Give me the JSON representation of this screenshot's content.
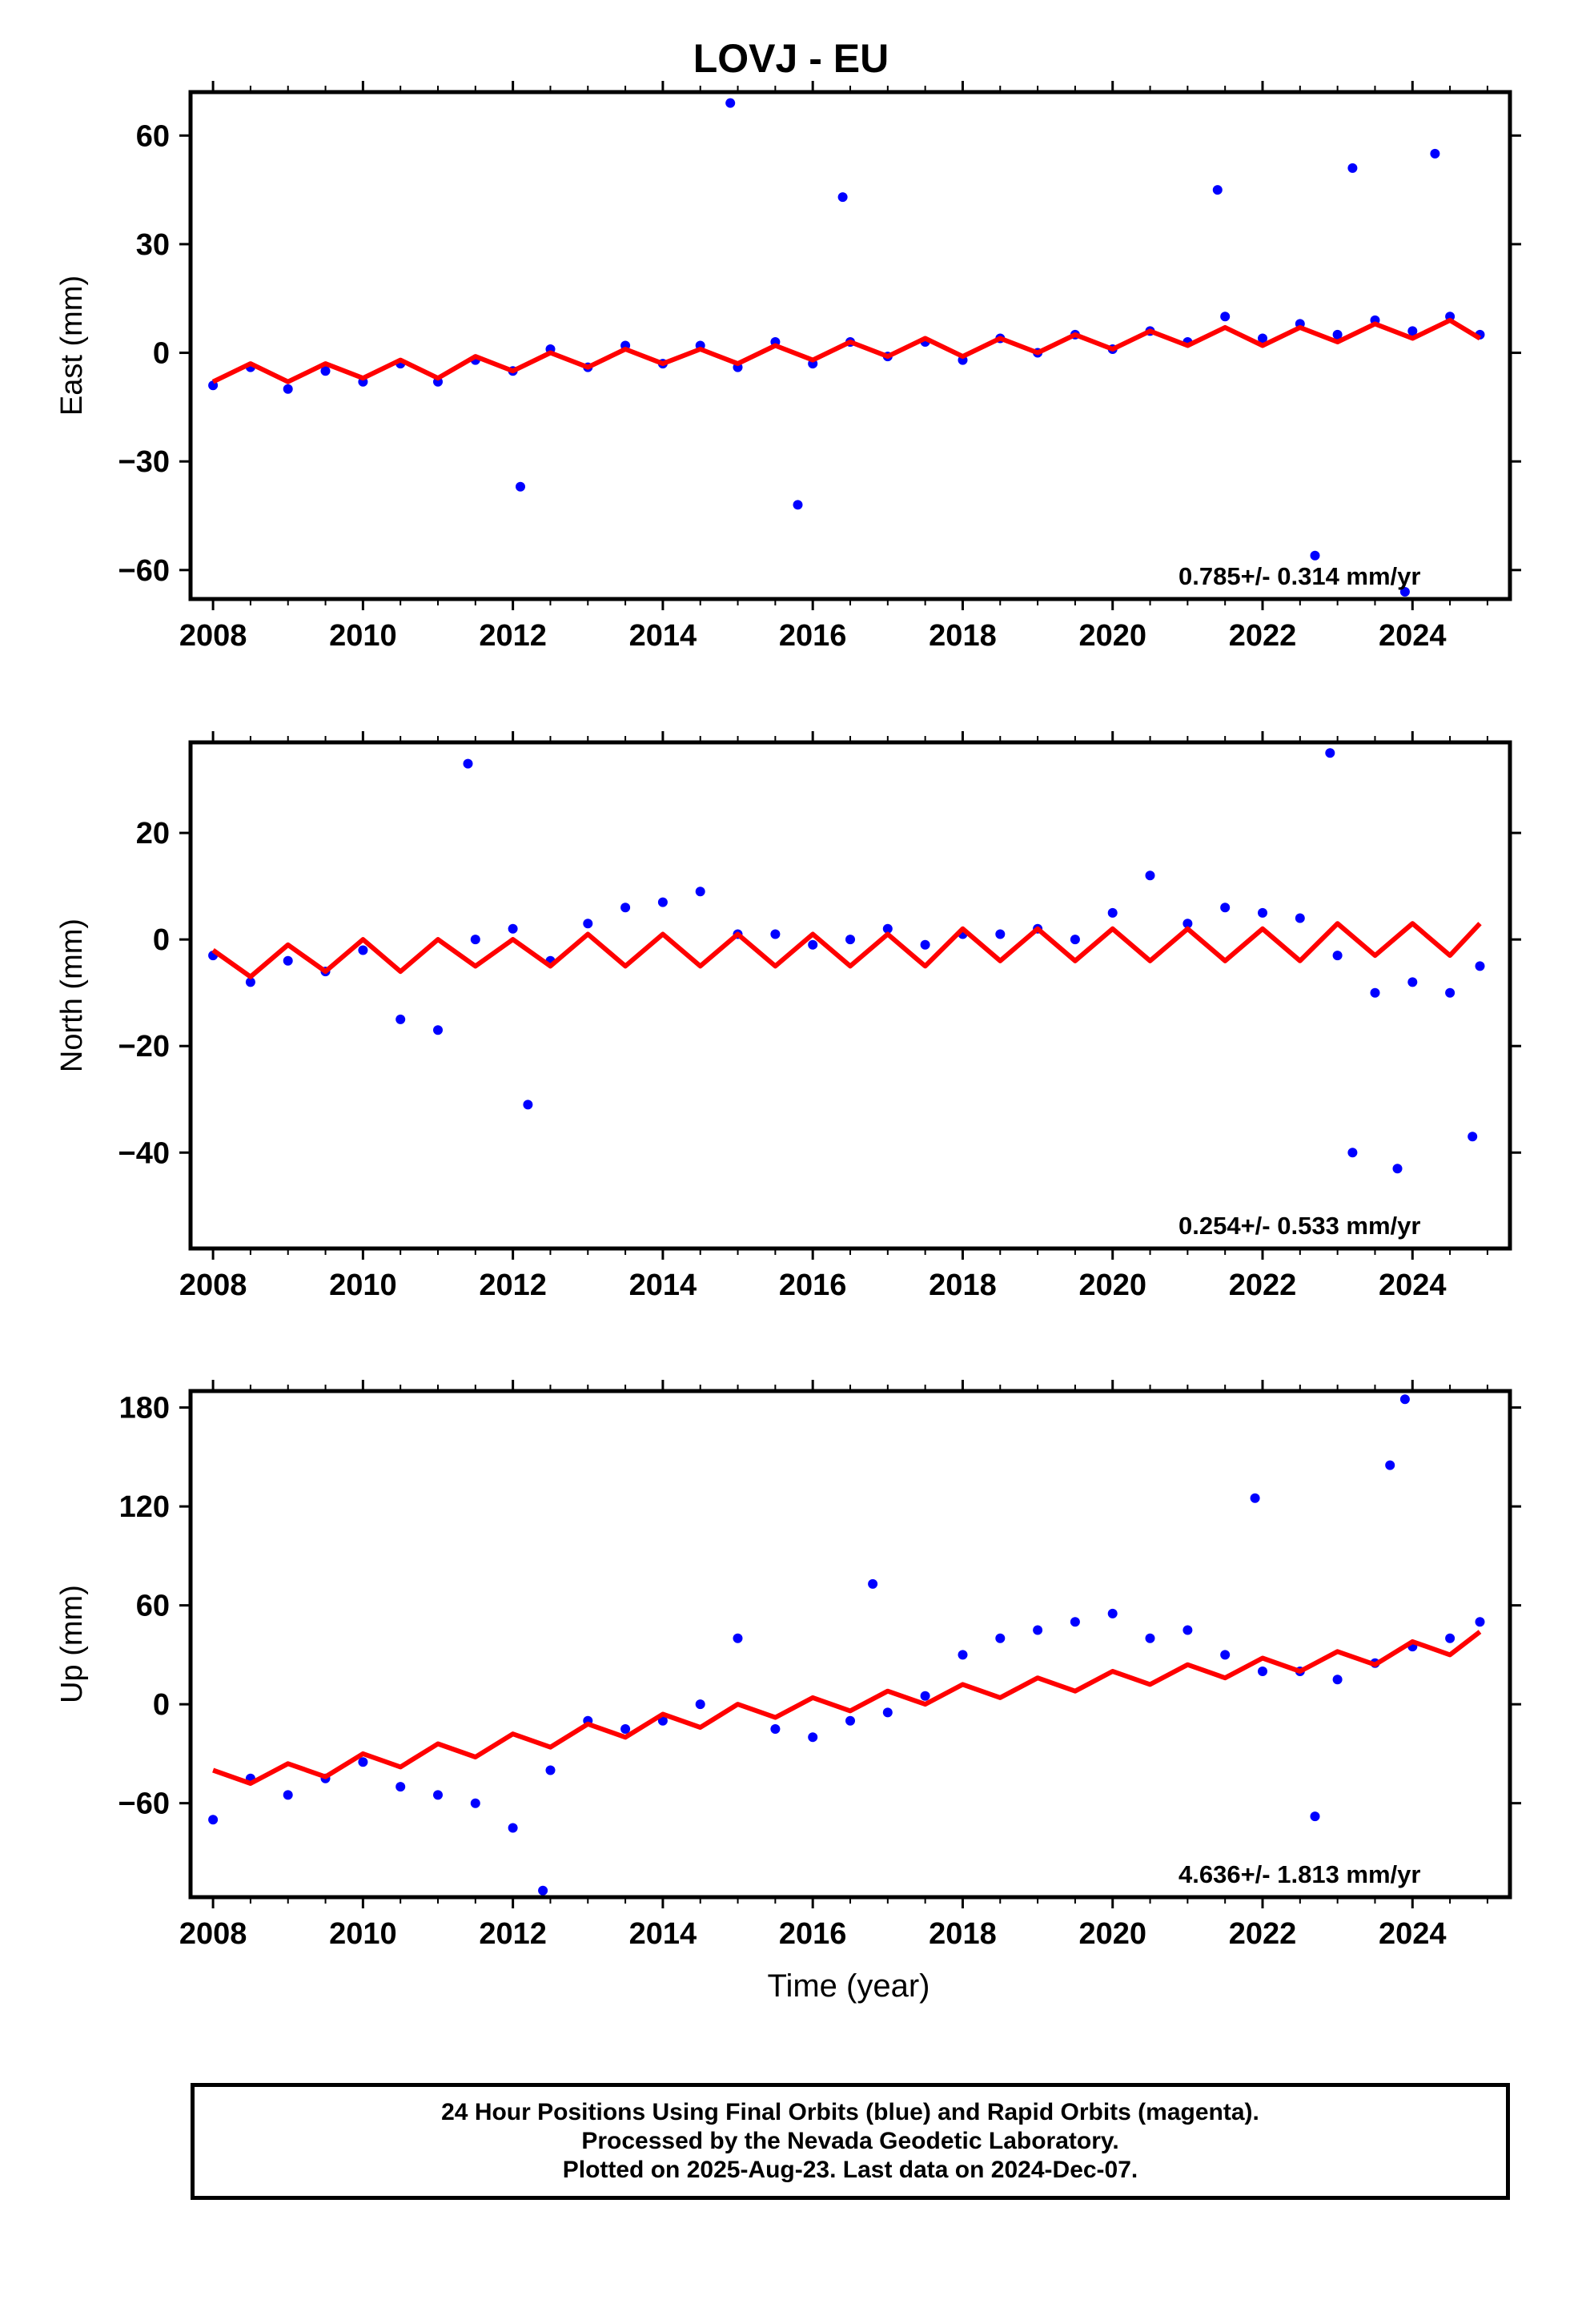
{
  "title": "LOVJ - EU",
  "xlabel": "Time (year)",
  "footer": {
    "line1": "24 Hour Positions Using Final Orbits (blue) and Rapid Orbits (magenta).",
    "line2": "Processed by the Nevada Geodetic Laboratory.",
    "line3": "Plotted on 2025-Aug-23. Last data on 2024-Dec-07."
  },
  "colors": {
    "points": "#0000ff",
    "model": "#ff0000",
    "frame": "#000000"
  },
  "chart_data": [
    {
      "type": "scatter",
      "component": "East",
      "ylabel": "East (mm)",
      "xlim": [
        2007.7,
        2025.3
      ],
      "ylim": [
        -68,
        72
      ],
      "xticks": [
        2008,
        2010,
        2012,
        2014,
        2016,
        2018,
        2020,
        2022,
        2024
      ],
      "yticks": [
        -60,
        -30,
        0,
        30,
        60
      ],
      "velocity_label": "0.785+/- 0.314 mm/yr",
      "model_curve": {
        "x": [
          2008.0,
          2008.5,
          2009.0,
          2009.5,
          2010.0,
          2010.5,
          2011.0,
          2011.5,
          2012.0,
          2012.5,
          2013.0,
          2013.5,
          2014.0,
          2014.5,
          2015.0,
          2015.5,
          2016.0,
          2016.5,
          2017.0,
          2017.5,
          2018.0,
          2018.5,
          2019.0,
          2019.5,
          2020.0,
          2020.5,
          2021.0,
          2021.5,
          2022.0,
          2022.5,
          2023.0,
          2023.5,
          2024.0,
          2024.5,
          2024.9
        ],
        "y": [
          -8,
          -3,
          -8,
          -3,
          -7,
          -2,
          -7,
          -1,
          -5,
          0,
          -4,
          1,
          -3,
          1,
          -3,
          2,
          -2,
          3,
          -1,
          4,
          -1,
          4,
          0,
          5,
          1,
          6,
          2,
          7,
          2,
          7,
          3,
          8,
          4,
          9,
          4
        ]
      },
      "series": [
        {
          "name": "daily positions",
          "x": [
            2008.0,
            2008.5,
            2009.0,
            2009.5,
            2010.0,
            2010.5,
            2011.0,
            2011.5,
            2012.0,
            2012.5,
            2013.0,
            2013.5,
            2014.0,
            2014.5,
            2015.0,
            2015.5,
            2016.0,
            2016.5,
            2017.0,
            2017.5,
            2018.0,
            2018.5,
            2019.0,
            2019.5,
            2020.0,
            2020.5,
            2021.0,
            2021.5,
            2022.0,
            2022.5,
            2023.0,
            2023.5,
            2024.0,
            2024.5,
            2024.9,
            2014.9,
            2016.4,
            2021.4,
            2023.2,
            2024.3,
            2012.1,
            2015.8,
            2022.7,
            2023.9
          ],
          "y": [
            -9,
            -4,
            -10,
            -5,
            -8,
            -3,
            -8,
            -2,
            -5,
            1,
            -4,
            2,
            -3,
            2,
            -4,
            3,
            -3,
            3,
            -1,
            3,
            -2,
            4,
            0,
            5,
            1,
            6,
            3,
            10,
            4,
            8,
            5,
            9,
            6,
            10,
            5,
            69,
            43,
            45,
            51,
            55,
            -37,
            -42,
            -56,
            -66
          ]
        }
      ]
    },
    {
      "type": "scatter",
      "component": "North",
      "ylabel": "North (mm)",
      "xlim": [
        2007.7,
        2025.3
      ],
      "ylim": [
        -58,
        37
      ],
      "xticks": [
        2008,
        2010,
        2012,
        2014,
        2016,
        2018,
        2020,
        2022,
        2024
      ],
      "yticks": [
        -40,
        -20,
        0,
        20
      ],
      "velocity_label": "0.254+/- 0.533 mm/yr",
      "model_curve": {
        "x": [
          2008.0,
          2008.5,
          2009.0,
          2009.5,
          2010.0,
          2010.5,
          2011.0,
          2011.5,
          2012.0,
          2012.5,
          2013.0,
          2013.5,
          2014.0,
          2014.5,
          2015.0,
          2015.5,
          2016.0,
          2016.5,
          2017.0,
          2017.5,
          2018.0,
          2018.5,
          2019.0,
          2019.5,
          2020.0,
          2020.5,
          2021.0,
          2021.5,
          2022.0,
          2022.5,
          2023.0,
          2023.5,
          2024.0,
          2024.5,
          2024.9
        ],
        "y": [
          -2,
          -7,
          -1,
          -6,
          0,
          -6,
          0,
          -5,
          0,
          -5,
          1,
          -5,
          1,
          -5,
          1,
          -5,
          1,
          -5,
          1,
          -5,
          2,
          -4,
          2,
          -4,
          2,
          -4,
          2,
          -4,
          2,
          -4,
          3,
          -3,
          3,
          -3,
          3
        ]
      },
      "series": [
        {
          "name": "daily positions",
          "x": [
            2008.0,
            2008.5,
            2009.0,
            2009.5,
            2010.0,
            2010.5,
            2011.0,
            2011.5,
            2012.0,
            2012.5,
            2013.0,
            2013.5,
            2014.0,
            2014.5,
            2015.0,
            2015.5,
            2016.0,
            2016.5,
            2017.0,
            2017.5,
            2018.0,
            2018.5,
            2019.0,
            2019.5,
            2020.0,
            2020.5,
            2021.0,
            2021.5,
            2022.0,
            2022.5,
            2023.0,
            2023.5,
            2024.0,
            2024.5,
            2024.9,
            2011.4,
            2022.9,
            2012.2,
            2023.2,
            2023.8,
            2024.8
          ],
          "y": [
            -3,
            -8,
            -4,
            -6,
            -2,
            -15,
            -17,
            0,
            2,
            -4,
            3,
            6,
            7,
            9,
            1,
            1,
            -1,
            0,
            2,
            -1,
            1,
            1,
            2,
            0,
            5,
            12,
            3,
            6,
            5,
            4,
            -3,
            -10,
            -8,
            -10,
            -5,
            33,
            35,
            -31,
            -40,
            -43,
            -37
          ]
        }
      ]
    },
    {
      "type": "scatter",
      "component": "Up",
      "ylabel": "Up (mm)",
      "xlim": [
        2007.7,
        2025.3
      ],
      "ylim": [
        -117,
        190
      ],
      "xticks": [
        2008,
        2010,
        2012,
        2014,
        2016,
        2018,
        2020,
        2022,
        2024
      ],
      "yticks": [
        -60,
        0,
        60,
        120,
        180
      ],
      "velocity_label": "4.636+/- 1.813 mm/yr",
      "model_curve": {
        "x": [
          2008.0,
          2008.5,
          2009.0,
          2009.5,
          2010.0,
          2010.5,
          2011.0,
          2011.5,
          2012.0,
          2012.5,
          2013.0,
          2013.5,
          2014.0,
          2014.5,
          2015.0,
          2015.5,
          2016.0,
          2016.5,
          2017.0,
          2017.5,
          2018.0,
          2018.5,
          2019.0,
          2019.5,
          2020.0,
          2020.5,
          2021.0,
          2021.5,
          2022.0,
          2022.5,
          2023.0,
          2023.5,
          2024.0,
          2024.5,
          2024.9
        ],
        "y": [
          -40,
          -48,
          -36,
          -44,
          -30,
          -38,
          -24,
          -32,
          -18,
          -26,
          -12,
          -20,
          -6,
          -14,
          0,
          -8,
          4,
          -4,
          8,
          0,
          12,
          4,
          16,
          8,
          20,
          12,
          24,
          16,
          28,
          20,
          32,
          24,
          38,
          30,
          44
        ]
      },
      "series": [
        {
          "name": "daily positions",
          "x": [
            2008.0,
            2008.5,
            2009.0,
            2009.5,
            2010.0,
            2010.5,
            2011.0,
            2011.5,
            2012.0,
            2012.5,
            2013.0,
            2013.5,
            2014.0,
            2014.5,
            2015.0,
            2015.5,
            2016.0,
            2016.5,
            2017.0,
            2017.5,
            2018.0,
            2018.5,
            2019.0,
            2019.5,
            2020.0,
            2020.5,
            2021.0,
            2021.5,
            2022.0,
            2022.5,
            2023.0,
            2023.5,
            2024.0,
            2024.5,
            2024.9,
            2023.9,
            2023.7,
            2021.9,
            2016.8,
            2012.4,
            2022.7
          ],
          "y": [
            -70,
            -45,
            -55,
            -45,
            -35,
            -50,
            -55,
            -60,
            -75,
            -40,
            -10,
            -15,
            -10,
            0,
            40,
            -15,
            -20,
            -10,
            -5,
            5,
            30,
            40,
            45,
            50,
            55,
            40,
            45,
            30,
            20,
            20,
            15,
            25,
            35,
            40,
            50,
            185,
            145,
            125,
            73,
            -113,
            -68
          ]
        }
      ]
    }
  ]
}
